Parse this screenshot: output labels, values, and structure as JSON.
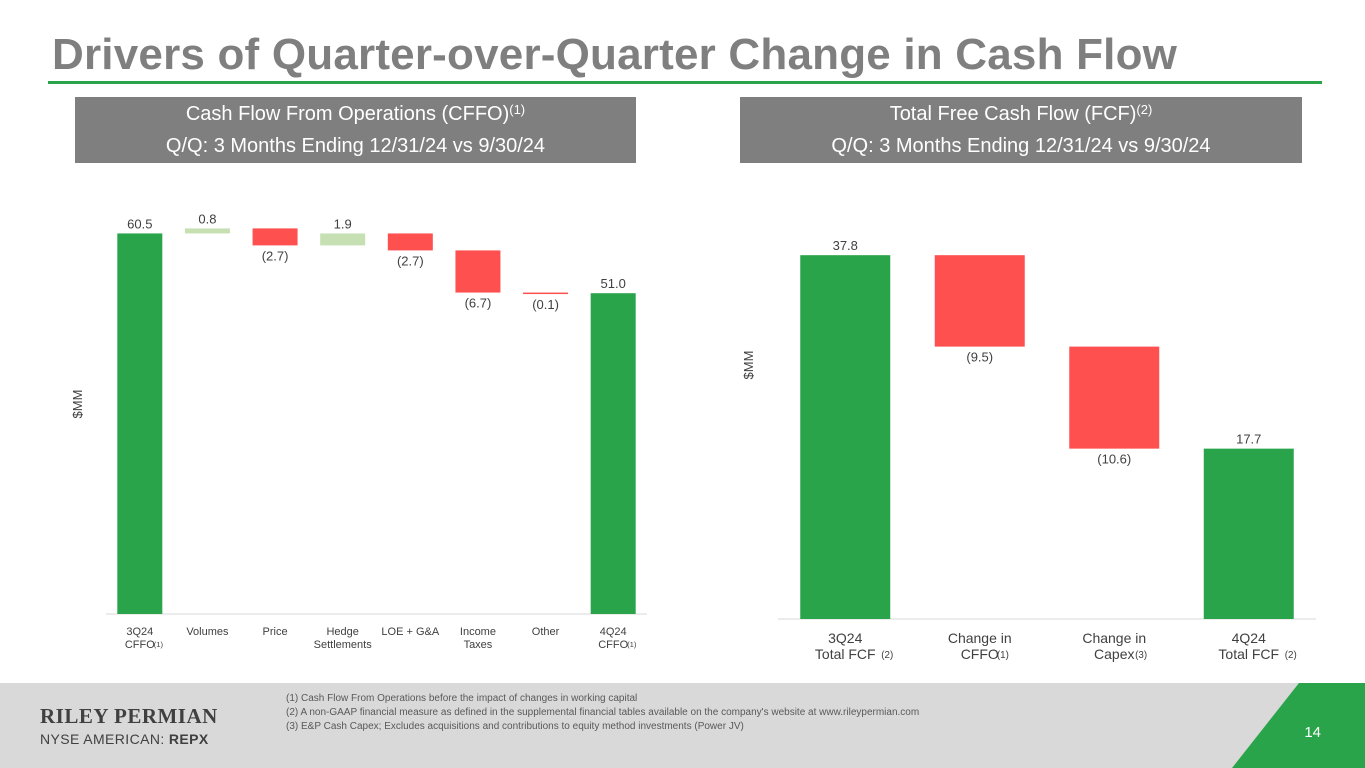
{
  "title": "Drivers of Quarter-over-Quarter Change in Cash Flow",
  "colors": {
    "accent_green": "#2aa44a",
    "light_green": "#c6e0b4",
    "negative_red": "#ff5050",
    "header_gray": "#7f7f7f"
  },
  "left_panel": {
    "heading": "Cash Flow From Operations (CFFO)",
    "heading_sup": "(1)",
    "subheading": "Q/Q: 3 Months Ending 12/31/24 vs 9/30/24"
  },
  "right_panel": {
    "heading": "Total Free Cash Flow (FCF)",
    "heading_sup": "(2)",
    "subheading": "Q/Q: 3 Months Ending 12/31/24 vs 9/30/24"
  },
  "chart_data": [
    {
      "type": "bar",
      "subtype": "waterfall",
      "ylabel": "$MM",
      "ylim": [
        0,
        62
      ],
      "categories": [
        {
          "label": [
            "3Q24",
            "CFFO"
          ],
          "sup": "(1)"
        },
        {
          "label": [
            "Volumes"
          ],
          "sup": ""
        },
        {
          "label": [
            "Price"
          ],
          "sup": ""
        },
        {
          "label": [
            "Hedge",
            "Settlements"
          ],
          "sup": ""
        },
        {
          "label": [
            "LOE + G&A"
          ],
          "sup": ""
        },
        {
          "label": [
            "Income",
            "Taxes"
          ],
          "sup": ""
        },
        {
          "label": [
            "Other"
          ],
          "sup": ""
        },
        {
          "label": [
            "4Q24",
            "CFFO"
          ],
          "sup": "(1)"
        }
      ],
      "values": [
        60.5,
        0.8,
        -2.7,
        1.9,
        -2.7,
        -6.7,
        -0.1,
        51.0
      ],
      "kinds": [
        "total",
        "delta",
        "delta",
        "delta",
        "delta",
        "delta",
        "delta",
        "total"
      ],
      "data_labels": [
        "60.5",
        "0.8",
        "(2.7)",
        "1.9",
        "(2.7)",
        "(6.7)",
        "(0.1)",
        "51.0"
      ]
    },
    {
      "type": "bar",
      "subtype": "waterfall",
      "ylabel": "$MM",
      "ylim": [
        0,
        40
      ],
      "categories": [
        {
          "label": [
            "3Q24",
            "Total FCF"
          ],
          "sup": "(2)"
        },
        {
          "label": [
            "Change in",
            "CFFO"
          ],
          "sup": "(1)"
        },
        {
          "label": [
            "Change in",
            "Capex"
          ],
          "sup": "(3)"
        },
        {
          "label": [
            "4Q24",
            "Total FCF"
          ],
          "sup": "(2)"
        }
      ],
      "values": [
        37.8,
        -9.5,
        -10.6,
        17.7
      ],
      "kinds": [
        "total",
        "delta",
        "delta",
        "total"
      ],
      "data_labels": [
        "37.8",
        "(9.5)",
        "(10.6)",
        "17.7"
      ]
    }
  ],
  "footer": {
    "company": "RILEY PERMIAN",
    "exchange_prefix": "NYSE AMERICAN: ",
    "ticker": "REPX",
    "notes": [
      "(1)  Cash Flow From Operations before the impact of changes in working capital",
      "(2)  A non-GAAP financial measure as defined in the supplemental financial tables available on the company's website at www.rileypermian.com",
      "(3)  E&P Cash Capex; Excludes acquisitions and contributions to equity method investments (Power JV)"
    ],
    "page_number": "14"
  }
}
